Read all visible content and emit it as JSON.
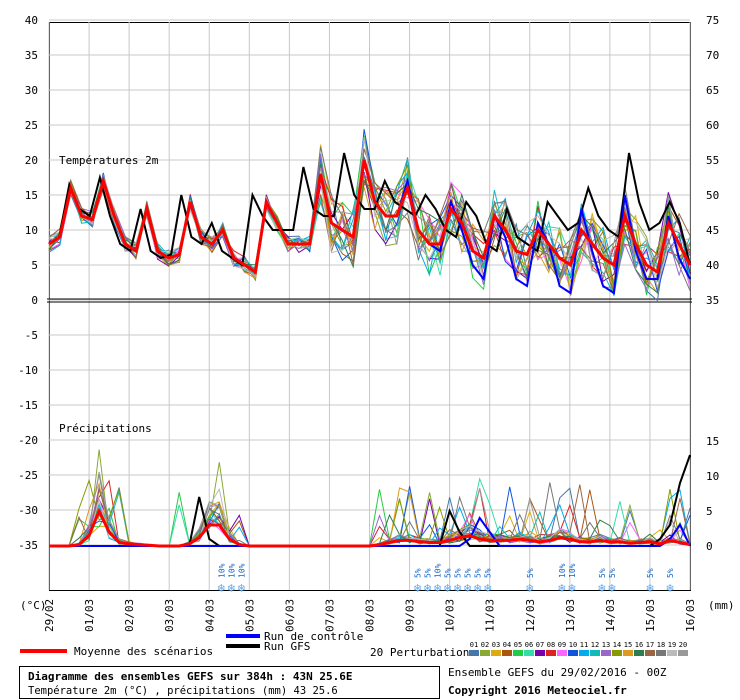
{
  "chart_data": {
    "type": "line",
    "left_axis_unit": "(°C)",
    "right_axis_unit": "(mm)",
    "left_ticks": [
      40,
      35,
      30,
      25,
      20,
      15,
      10,
      5,
      0,
      -5,
      -10,
      -15,
      -20,
      -25,
      -30,
      -35
    ],
    "right_ticks": [
      75,
      70,
      65,
      60,
      55,
      50,
      45,
      40,
      35,
      15,
      10,
      5,
      0
    ],
    "x_ticks": [
      "29/02",
      "01/03",
      "02/03",
      "03/03",
      "04/03",
      "05/03",
      "06/03",
      "07/03",
      "08/03",
      "09/03",
      "10/03",
      "11/03",
      "12/03",
      "13/03",
      "14/03",
      "15/03",
      "16/03"
    ],
    "temp_label": "Températures 2m",
    "precip_label": "Précipitations",
    "snow_labels": [
      "10%",
      "10%",
      "10%",
      "5%",
      "5%",
      "10%",
      "5%",
      "5%",
      "5%",
      "5%",
      "5%",
      "5%",
      "10%",
      "10%",
      "5%",
      "5%",
      "5%",
      "5%"
    ],
    "snow_positions_day": [
      4.3,
      4.55,
      4.8,
      9.2,
      9.45,
      9.7,
      9.95,
      10.2,
      10.45,
      10.7,
      10.95,
      12.0,
      12.8,
      13.05,
      13.8,
      14.05,
      15.0,
      15.5
    ],
    "mean_temp": [
      8,
      9,
      16,
      12,
      11.5,
      17,
      12,
      8,
      7,
      13,
      7,
      6,
      6.5,
      14,
      9,
      8,
      10,
      6,
      5,
      4,
      14,
      11,
      8,
      8,
      8,
      18,
      11,
      10,
      9,
      20,
      14,
      12,
      12,
      16,
      10,
      8,
      8,
      13,
      11,
      7,
      6,
      12,
      10,
      7,
      6.5,
      10,
      8,
      6,
      5,
      10,
      8,
      6,
      5,
      12,
      8,
      5,
      4,
      11,
      8,
      5
    ],
    "control_temp": [
      8,
      9,
      16,
      12,
      11.5,
      17,
      12,
      8,
      7,
      13,
      7,
      6,
      6.5,
      14,
      9,
      8,
      10,
      6,
      5,
      4,
      14,
      11,
      8,
      8,
      8,
      18,
      11,
      10,
      9,
      20,
      14,
      12,
      12,
      17,
      10,
      8,
      7,
      14,
      10,
      5,
      3,
      12,
      9,
      3,
      2,
      11,
      8,
      2,
      1,
      13,
      7,
      2,
      1,
      15,
      7,
      3,
      3,
      12,
      6,
      3
    ],
    "gfs_temp": [
      8,
      9,
      16.5,
      13,
      12,
      17.5,
      12,
      8,
      7,
      13,
      7,
      6,
      6.5,
      15,
      9,
      8,
      11,
      7,
      6,
      5,
      15,
      12,
      10,
      10,
      10,
      19,
      13,
      12,
      12,
      21,
      15,
      13,
      13,
      17,
      14,
      13,
      12,
      15,
      13,
      10,
      9,
      14,
      12,
      8,
      7,
      13,
      9,
      8,
      7,
      14,
      12,
      10,
      11,
      16,
      12,
      10,
      9,
      21,
      14,
      10,
      11,
      14,
      11,
      5
    ],
    "mean_precip": [
      0,
      0,
      0,
      0.2,
      1.5,
      5,
      2,
      0.5,
      0.3,
      0.2,
      0.1,
      0,
      0,
      0,
      0.3,
      1.2,
      3,
      3,
      1,
      0.2,
      0,
      0,
      0,
      0,
      0,
      0,
      0,
      0,
      0,
      0,
      0,
      0,
      0,
      0.2,
      0.5,
      0.8,
      0.8,
      0.6,
      0.5,
      0.5,
      0.8,
      1.2,
      1.5,
      1,
      0.8,
      0.8,
      0.8,
      1,
      0.8,
      0.6,
      0.8,
      1.2,
      1,
      0.6,
      0.6,
      0.8,
      0.6,
      0.6,
      0.4,
      0.5,
      0.6,
      0.3,
      0.8,
      0.5,
      0.2
    ],
    "control_precip": [
      0,
      0,
      0,
      0,
      0,
      0,
      0,
      0,
      0,
      0,
      0,
      0,
      0,
      0,
      0,
      0,
      0,
      0,
      0,
      0,
      0,
      0,
      0,
      0,
      0,
      0,
      0,
      0,
      0,
      0,
      0,
      0,
      0,
      0,
      0,
      0,
      0,
      0,
      0,
      0,
      0,
      0,
      1,
      4,
      2,
      0,
      0,
      0,
      0,
      0,
      0,
      0,
      0,
      0,
      0,
      0,
      0,
      0,
      0,
      0,
      0,
      0,
      1,
      3,
      0
    ],
    "gfs_precip": [
      0,
      0,
      0,
      0,
      0,
      0,
      0,
      0,
      0,
      0,
      0,
      0,
      0,
      0,
      0,
      7,
      1,
      0,
      0,
      0,
      0,
      0,
      0,
      0,
      0,
      0,
      0,
      0,
      0,
      0,
      0,
      0,
      0,
      0,
      0,
      0,
      0,
      0,
      0,
      0,
      5,
      2,
      0,
      0,
      0,
      0,
      0,
      0,
      0,
      0,
      0,
      0,
      0,
      0,
      0,
      0,
      0,
      0,
      0,
      0,
      0,
      1,
      3,
      9,
      13
    ]
  },
  "legend": {
    "mean": "Moyenne des scénarios",
    "control": "Run de contrôle",
    "gfs": "Run GFS",
    "perturbations": "20 Perturbations",
    "perturbation_numbers": [
      "01",
      "02",
      "03",
      "04",
      "05",
      "06",
      "07",
      "08",
      "09",
      "10",
      "11",
      "12",
      "13",
      "14",
      "15",
      "16",
      "17",
      "18",
      "19",
      "20"
    ],
    "perturbation_colors": [
      "#4477aa",
      "#88aa33",
      "#ddaa11",
      "#aa5511",
      "#22cc44",
      "#33ddaa",
      "#7700aa",
      "#dd2222",
      "#ff66ff",
      "#1155dd",
      "#00aaee",
      "#11bbbb",
      "#9966cc",
      "#889900",
      "#dd9922",
      "#2e7d4f",
      "#996644",
      "#777777",
      "#bbbbbb",
      "#999999"
    ]
  },
  "footer": {
    "title": "Diagramme des ensembles GEFS sur 384h : 43N 25.6E",
    "subtitle": "Température 2m (°C) , précipitations (mm) 43 25.6",
    "run": "Ensemble GEFS du 29/02/2016 - 00Z",
    "copyright": "Copyright 2016 Meteociel.fr"
  },
  "colors": {
    "mean": "#ff0000",
    "control": "#0000ff",
    "gfs": "#000000"
  }
}
